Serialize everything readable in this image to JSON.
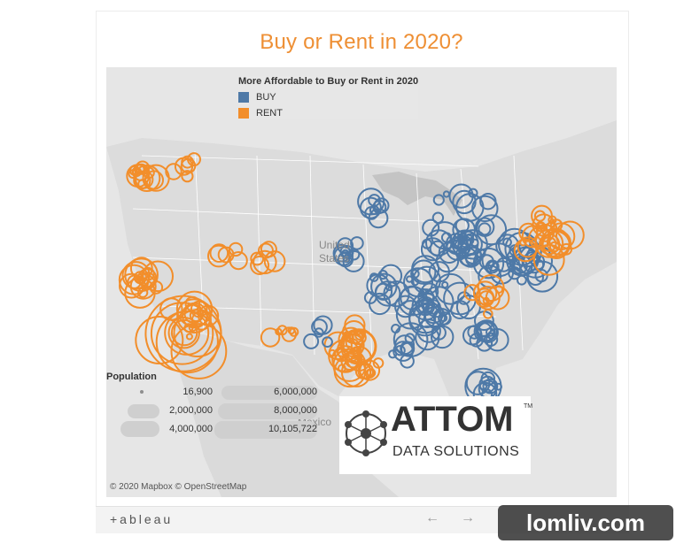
{
  "title": "Buy or Rent in 2020?",
  "legend": {
    "title": "More Affordable to Buy or Rent in 2020",
    "items": [
      {
        "label": "BUY",
        "color": "#4e79a7"
      },
      {
        "label": "RENT",
        "color": "#f28e2b"
      }
    ]
  },
  "population_legend": {
    "title": "Population",
    "values": [
      "16,900",
      "2,000,000",
      "4,000,000",
      "6,000,000",
      "8,000,000",
      "10,105,722"
    ]
  },
  "map_labels": {
    "united_states": "United States",
    "mexico": "Mexico"
  },
  "attom": {
    "name": "ATTOM",
    "tagline": "DATA SOLUTIONS",
    "trademark": "TM"
  },
  "credit": "© 2020 Mapbox © OpenStreetMap",
  "toolbar": {
    "logo": "+ableau",
    "back_icon": "arrow-left-icon",
    "forward_icon": "arrow-right-icon",
    "back": "←",
    "forward": "→"
  },
  "watermark": "lomliv.com"
}
